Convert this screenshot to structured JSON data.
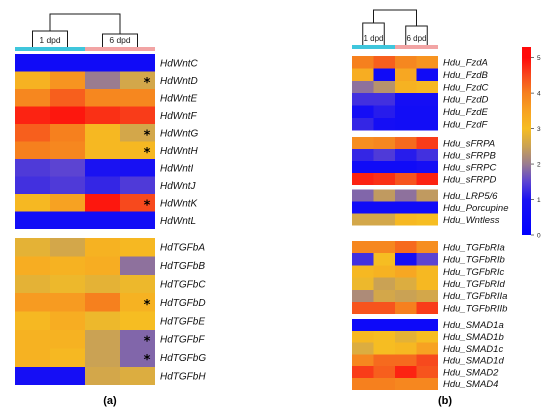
{
  "chart_data": [
    {
      "type": "heatmap",
      "panel_label": "(a)",
      "column_groups": [
        {
          "label": "1 dpd",
          "color": "#3fc6dc"
        },
        {
          "label": "6 dpd",
          "color": "#f2a4a4"
        }
      ],
      "marker": "*",
      "blocks": [
        {
          "rows": [
            {
              "name": "HdWntC",
              "values": [
                0.6,
                0.6,
                0.6,
                0.6
              ],
              "marked": false
            },
            {
              "name": "HdWntD",
              "values": [
                3.2,
                3.7,
                2.0,
                2.6
              ],
              "marked": true
            },
            {
              "name": "HdWntE",
              "values": [
                3.9,
                4.3,
                3.9,
                3.9
              ],
              "marked": false
            },
            {
              "name": "HdWntF",
              "values": [
                4.8,
                4.9,
                4.7,
                4.6
              ],
              "marked": false
            },
            {
              "name": "HdWntG",
              "values": [
                4.3,
                4.0,
                3.1,
                2.6
              ],
              "marked": true
            },
            {
              "name": "HdWntH",
              "values": [
                4.0,
                3.9,
                3.1,
                3.1
              ],
              "marked": true
            },
            {
              "name": "HdWntI",
              "values": [
                1.4,
                1.5,
                1.0,
                0.9
              ],
              "marked": false
            },
            {
              "name": "HdWntJ",
              "values": [
                1.3,
                1.4,
                1.2,
                1.4
              ],
              "marked": false
            },
            {
              "name": "HdWntK",
              "values": [
                3.1,
                3.5,
                4.9,
                4.5
              ],
              "marked": true
            },
            {
              "name": "HdWntL",
              "values": [
                0.7,
                0.7,
                0.7,
                0.7
              ],
              "marked": false
            }
          ]
        },
        {
          "rows": [
            {
              "name": "HdTGFbA",
              "values": [
                2.8,
                2.6,
                3.2,
                3.1
              ],
              "marked": false
            },
            {
              "name": "HdTGFbB",
              "values": [
                3.3,
                3.2,
                3.3,
                1.9
              ],
              "marked": false
            },
            {
              "name": "HdTGFbC",
              "values": [
                2.8,
                2.9,
                2.8,
                2.9
              ],
              "marked": false
            },
            {
              "name": "HdTGFbD",
              "values": [
                3.6,
                3.6,
                4.0,
                3.2
              ],
              "marked": true
            },
            {
              "name": "HdTGFbE",
              "values": [
                3.1,
                3.3,
                2.9,
                3.0
              ],
              "marked": false
            },
            {
              "name": "HdTGFbF",
              "values": [
                3.2,
                3.2,
                2.5,
                1.8
              ],
              "marked": true
            },
            {
              "name": "HdTGFbG",
              "values": [
                3.2,
                3.1,
                2.5,
                1.8
              ],
              "marked": true
            },
            {
              "name": "HdTGFbH",
              "values": [
                0.8,
                0.8,
                2.6,
                2.7
              ],
              "marked": false
            }
          ]
        }
      ]
    },
    {
      "type": "heatmap",
      "panel_label": "(b)",
      "column_groups": [
        {
          "label": "1 dpd",
          "color": "#3fc6dc"
        },
        {
          "label": "6 dpd",
          "color": "#f2a4a4"
        }
      ],
      "blocks": [
        {
          "rows": [
            {
              "name": "Hdu_FzdA",
              "values": [
                4.0,
                4.3,
                3.9,
                3.7
              ]
            },
            {
              "name": "Hdu_FzdB",
              "values": [
                3.3,
                0.6,
                3.4,
                0.6
              ]
            },
            {
              "name": "Hdu_FzdC",
              "values": [
                1.9,
                2.3,
                3.2,
                3.1
              ]
            },
            {
              "name": "Hdu_FzdD",
              "values": [
                1.3,
                1.3,
                0.8,
                0.8
              ]
            },
            {
              "name": "Hdu_FzdE",
              "values": [
                0.8,
                1.1,
                0.7,
                0.7
              ]
            },
            {
              "name": "Hdu_FzdF",
              "values": [
                1.2,
                0.8,
                0.7,
                0.7
              ]
            }
          ]
        },
        {
          "rows": [
            {
              "name": "Hdu_sFRPA",
              "values": [
                3.8,
                3.9,
                4.2,
                4.6
              ]
            },
            {
              "name": "Hdu_sFRPB",
              "values": [
                1.2,
                1.4,
                1.1,
                1.3
              ]
            },
            {
              "name": "Hdu_sFRPC",
              "values": [
                0.6,
                0.6,
                0.6,
                0.8
              ]
            },
            {
              "name": "Hdu_sFRPD",
              "values": [
                4.8,
                4.7,
                4.4,
                4.8
              ]
            }
          ]
        },
        {
          "rows": [
            {
              "name": "Hdu_LRP5/6",
              "values": [
                1.8,
                2.4,
                1.9,
                2.4
              ]
            },
            {
              "name": "Hdu_Porcupine",
              "values": [
                0.6,
                0.6,
                0.6,
                0.6
              ]
            },
            {
              "name": "Hdu_Wntless",
              "values": [
                2.6,
                2.6,
                3.1,
                3.0
              ]
            }
          ]
        },
        {
          "rows": [
            {
              "name": "Hdu_TGFbRIa",
              "values": [
                3.9,
                3.9,
                4.2,
                3.8
              ]
            },
            {
              "name": "Hdu_TGFbRIb",
              "values": [
                1.3,
                3.0,
                0.8,
                1.5
              ]
            },
            {
              "name": "Hdu_TGFbRIc",
              "values": [
                3.1,
                3.2,
                3.4,
                3.1
              ]
            },
            {
              "name": "Hdu_TGFbRId",
              "values": [
                2.9,
                2.5,
                2.7,
                3.1
              ]
            },
            {
              "name": "Hdu_TGFbRIIa",
              "values": [
                2.2,
                2.6,
                2.5,
                2.6
              ]
            },
            {
              "name": "Hdu_TGFbRIIb",
              "values": [
                4.4,
                4.4,
                4.0,
                4.6
              ]
            }
          ]
        },
        {
          "rows": [
            {
              "name": "Hdu_SMAD1a",
              "values": [
                0.5,
                0.5,
                0.5,
                0.5
              ]
            },
            {
              "name": "Hdu_SMAD1b",
              "values": [
                3.1,
                3.0,
                2.8,
                3.0
              ]
            },
            {
              "name": "Hdu_SMAD1c",
              "values": [
                2.7,
                3.0,
                3.1,
                3.5
              ]
            },
            {
              "name": "Hdu_SMAD1d",
              "values": [
                3.9,
                4.2,
                4.2,
                4.5
              ]
            },
            {
              "name": "Hdu_SMAD2",
              "values": [
                4.6,
                4.3,
                4.8,
                4.4
              ]
            },
            {
              "name": "Hdu_SMAD4",
              "values": [
                4.0,
                4.0,
                3.9,
                3.9
              ]
            }
          ]
        }
      ],
      "colorbar": {
        "range": [
          0,
          5.3
        ],
        "ticks": [
          "5",
          "4",
          "3",
          "2",
          "1",
          "0"
        ],
        "stops": [
          {
            "value": 0.0,
            "color": "#0000ff"
          },
          {
            "value": 1.0,
            "color": "#1a12f2"
          },
          {
            "value": 1.5,
            "color": "#5c44d2"
          },
          {
            "value": 2.0,
            "color": "#9a7c90"
          },
          {
            "value": 2.5,
            "color": "#caa254"
          },
          {
            "value": 3.0,
            "color": "#f6bd22"
          },
          {
            "value": 3.5,
            "color": "#f7a222"
          },
          {
            "value": 4.0,
            "color": "#f6801e"
          },
          {
            "value": 4.5,
            "color": "#f7491d"
          },
          {
            "value": 5.0,
            "color": "#ff0a0a"
          }
        ]
      }
    }
  ]
}
